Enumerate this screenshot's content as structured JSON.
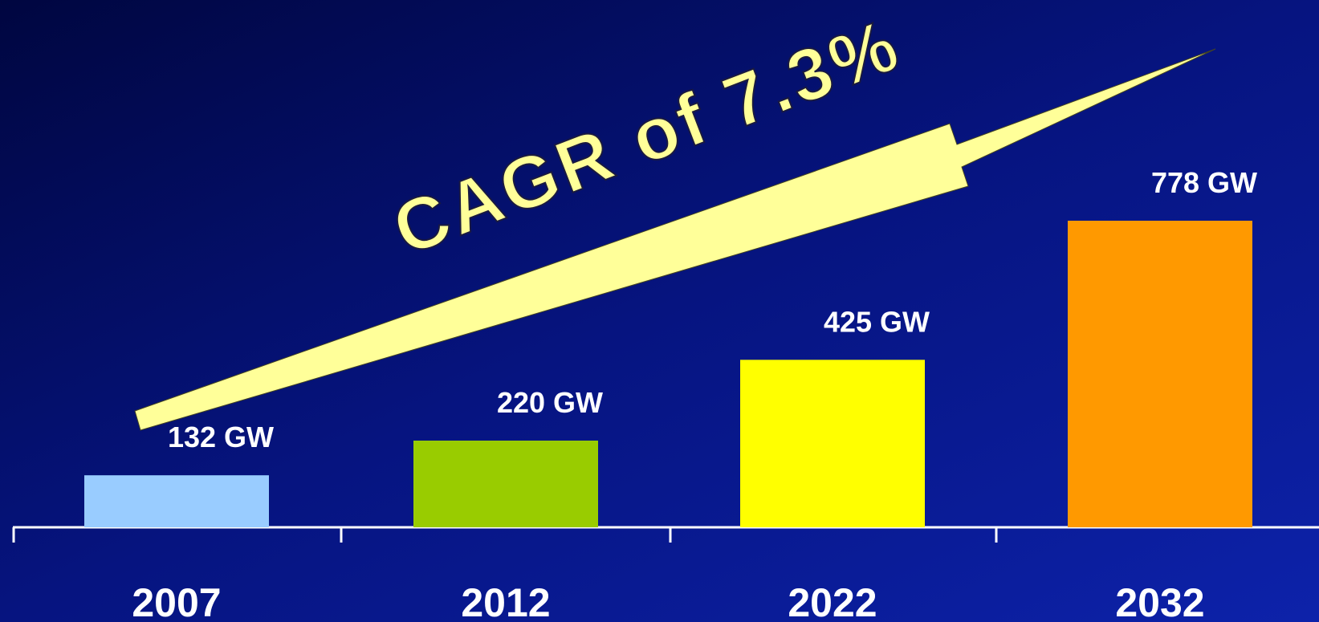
{
  "chart_data": {
    "type": "bar",
    "annotation": "CAGR of 7.3%",
    "categories": [
      "2007",
      "2012",
      "2022",
      "2032"
    ],
    "values": [
      132,
      220,
      425,
      778
    ],
    "value_labels": [
      "132 GW",
      "220 GW",
      "425 GW",
      "778 GW"
    ],
    "colors": [
      "#99ccff",
      "#99cc00",
      "#ffff00",
      "#ff9900"
    ]
  }
}
